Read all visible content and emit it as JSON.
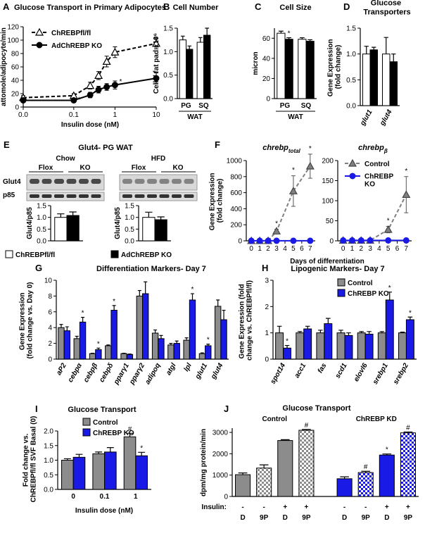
{
  "chart_data": [
    {
      "type": "line",
      "panel": "A",
      "title": "Glucose Transport in Primary Adipocytes",
      "ylabel": "attomole/adipocyte/min",
      "xlabel": "Insulin dose (nM)",
      "xscale": "log",
      "x": [
        0,
        0.1,
        0.25,
        0.4,
        0.63,
        1,
        10
      ],
      "xlim": [
        0,
        10
      ],
      "xticks": [
        {
          "value": 0,
          "label": "0.0"
        },
        0.1,
        1,
        10
      ],
      "ylim": [
        0,
        120
      ],
      "yticks": [
        0,
        20,
        40,
        60,
        80,
        100,
        120
      ],
      "legend": "top-left",
      "series": [
        {
          "name": "ChREBPfl/fl",
          "color": "#000000",
          "marker": "triangle",
          "dashed": true,
          "values": [
            14,
            17,
            32,
            47,
            68,
            82,
            95
          ],
          "errors": [
            3,
            3,
            5,
            6,
            8,
            8,
            8
          ]
        },
        {
          "name": "AdChREBP KO",
          "color": "#000000",
          "marker": "circle",
          "dashed": false,
          "values": [
            10,
            10,
            18,
            26,
            30,
            33,
            43
          ],
          "errors": [
            2,
            2,
            4,
            5,
            5,
            6,
            8
          ],
          "marks": [
            null,
            "*",
            "*",
            null,
            null,
            "*",
            null
          ]
        }
      ]
    },
    {
      "type": "bar",
      "panel": "B",
      "title": "Cell Number",
      "ylabel": "Cells/ fat pad x10⁶",
      "categories": [
        "PG",
        "SQ"
      ],
      "group_label": "WAT",
      "ylim": [
        0,
        1.5
      ],
      "yticks": [
        {
          "value": 0,
          "label": "0.0"
        },
        0.5,
        {
          "value": 1,
          "label": "1.0"
        },
        1.5
      ],
      "series": [
        {
          "color": "#ffffff",
          "values": [
            1.25,
            1.2
          ],
          "errors": [
            0.08,
            0.1
          ]
        },
        {
          "color": "#000000",
          "values": [
            1.05,
            1.35
          ],
          "errors": [
            0.07,
            0.15
          ]
        }
      ]
    },
    {
      "type": "bar",
      "panel": "C",
      "title": "Cell Size",
      "ylabel": "micron",
      "categories": [
        "PG",
        "SQ"
      ],
      "group_label": "WAT",
      "ylim": [
        0,
        70
      ],
      "yticks": [
        0,
        20,
        40,
        60
      ],
      "series": [
        {
          "color": "#ffffff",
          "values": [
            65,
            59
          ],
          "errors": [
            2,
            1.5
          ]
        },
        {
          "color": "#000000",
          "values": [
            59,
            57
          ],
          "errors": [
            1.5,
            1.5
          ],
          "marks": [
            "*",
            null
          ]
        }
      ]
    },
    {
      "type": "bar",
      "panel": "D",
      "title": "Glucose Transporters",
      "ylabel": "Gene Expression (fold change)",
      "categories": [
        "glut1",
        "glut4"
      ],
      "ylim": [
        0,
        1.5
      ],
      "yticks": [
        {
          "value": 0,
          "label": "0.0"
        },
        0.5,
        {
          "value": 1,
          "label": "1.0"
        },
        1.5
      ],
      "series": [
        {
          "color": "#ffffff",
          "values": [
            1.0,
            1.0
          ],
          "errors": [
            0.15,
            0.32
          ]
        },
        {
          "color": "#000000",
          "values": [
            1.08,
            0.85
          ],
          "errors": [
            0.05,
            0.15
          ]
        }
      ]
    },
    {
      "type": "bar",
      "panel": "E",
      "ylabel": "Glut4/p85",
      "legend": "bottom",
      "ylim": [
        0,
        1.5
      ],
      "yticks": [
        {
          "value": 0,
          "label": "0.0"
        },
        0.5,
        {
          "value": 1,
          "label": "1.0"
        },
        1.5
      ],
      "series": [
        {
          "name": "ChREBPfl/fl",
          "color": "#ffffff",
          "values": [
            1.0
          ],
          "errors": [
            0.15
          ]
        },
        {
          "name": "AdChREBP KO",
          "color": "#000000",
          "values": [
            1.08
          ],
          "errors": [
            0.15
          ]
        }
      ]
    },
    {
      "type": "bar",
      "ylabel": "Glut4/p85",
      "ylim": [
        0,
        1.5
      ],
      "yticks": [
        {
          "value": 0,
          "label": "0.0"
        },
        0.5,
        {
          "value": 1,
          "label": "1.0"
        },
        1.5
      ],
      "series": [
        {
          "color": "#ffffff",
          "values": [
            1.0
          ],
          "errors": [
            0.22
          ]
        },
        {
          "color": "#000000",
          "values": [
            0.9
          ],
          "errors": [
            0.12
          ]
        }
      ]
    },
    {
      "type": "line",
      "panel": "F",
      "title": "chrebp",
      "title_sub": "total",
      "ylabel": "Gene Expression (fold change)",
      "xlabel": "Days of differentiation",
      "x": [
        0,
        1,
        2,
        3,
        5,
        7
      ],
      "xlim": [
        -0.6,
        7.6
      ],
      "xticks": [
        0,
        1,
        2,
        3,
        4,
        5,
        6,
        7
      ],
      "ylim": [
        0,
        1000
      ],
      "yticks": [
        0,
        200,
        400,
        600,
        800,
        1000
      ],
      "series": [
        {
          "color": "#808080",
          "marker": "triangle",
          "dashed": true,
          "values": [
            1,
            1,
            1,
            120,
            620,
            930
          ],
          "errors": [
            0,
            0,
            0,
            25,
            190,
            150
          ],
          "marks": [
            null,
            null,
            null,
            "*",
            "*",
            "*"
          ]
        },
        {
          "color": "#1a1ae6",
          "marker": "circle",
          "dashed": false,
          "values": [
            1,
            1,
            1,
            1,
            1,
            1
          ]
        }
      ]
    },
    {
      "type": "line",
      "title": "chrebp",
      "title_sub": "β",
      "legend": "top-left",
      "x": [
        0,
        1,
        2,
        3,
        5,
        7
      ],
      "xlim": [
        -0.6,
        7.6
      ],
      "xticks": [
        0,
        1,
        2,
        3,
        4,
        5,
        6,
        7
      ],
      "ylim": [
        0,
        200
      ],
      "yticks": [
        0,
        50,
        100,
        150,
        200
      ],
      "series": [
        {
          "name": "Control",
          "color": "#808080",
          "marker": "triangle",
          "dashed": true,
          "values": [
            1,
            1,
            1,
            1,
            28,
            115
          ],
          "errors": [
            0,
            0,
            0,
            0,
            8,
            45
          ],
          "marks": [
            null,
            null,
            null,
            null,
            "*",
            "*"
          ]
        },
        {
          "name": "ChREBP KO",
          "color": "#1a1ae6",
          "marker": "circle",
          "dashed": false,
          "values": [
            1,
            1,
            1,
            1,
            1,
            1
          ]
        }
      ]
    },
    {
      "type": "bar",
      "panel": "G",
      "title": "Differentiation Markers- Day 7",
      "ylabel": "Gene Expression (fold change vs. Day 0)",
      "categories": [
        "aP2",
        "cebpα",
        "cebpβ",
        "cebpδ",
        "pparγ1",
        "pparγ2",
        "adipoq",
        "atgl",
        "lpl",
        "glut1",
        "glut4"
      ],
      "ylim": [
        0,
        10
      ],
      "yticks": [
        0,
        2,
        4,
        6,
        8,
        10
      ],
      "series": [
        {
          "color": "#8c8c8c",
          "values": [
            4.0,
            2.6,
            0.7,
            1.7,
            0.7,
            8.0,
            3.3,
            1.8,
            2.4,
            0.7,
            6.7
          ],
          "errors": [
            0.4,
            0.3,
            0.05,
            0.1,
            0.05,
            0.7,
            0.4,
            0.2,
            0.3,
            0.1,
            0.8
          ]
        },
        {
          "color": "#1a1ae6",
          "values": [
            3.6,
            4.7,
            1.2,
            6.2,
            0.6,
            8.3,
            2.6,
            2.0,
            7.5,
            1.7,
            5.0
          ],
          "errors": [
            0.5,
            0.6,
            0.2,
            0.6,
            0.05,
            1.5,
            0.4,
            0.3,
            0.8,
            0.2,
            1.2
          ],
          "marks": [
            null,
            "*",
            "*",
            "*",
            null,
            null,
            null,
            null,
            "*",
            "*",
            null
          ]
        }
      ]
    },
    {
      "type": "bar",
      "panel": "H",
      "title": "Lipogenic Markers- Day 7",
      "ylabel": "Gene Expression (fold change vs. ChREBPfl/fl)",
      "legend": "top-right",
      "categories": [
        "spot14",
        "acc1",
        "fas",
        "scd1",
        "elovl6",
        "srebp1",
        "srebp2"
      ],
      "ylim": [
        0,
        3
      ],
      "yticks": [
        0,
        1,
        2,
        3
      ],
      "series": [
        {
          "name": "Control",
          "color": "#8c8c8c",
          "values": [
            1.0,
            1.0,
            1.0,
            1.0,
            1.0,
            1.0,
            1.0
          ],
          "errors": [
            0.25,
            0.05,
            0.1,
            0.1,
            0.05,
            0.05,
            0.03
          ]
        },
        {
          "name": "ChREBP KO",
          "color": "#1a1ae6",
          "values": [
            0.42,
            1.15,
            1.35,
            0.9,
            0.95,
            2.25,
            1.5
          ],
          "errors": [
            0.1,
            0.1,
            0.2,
            0.1,
            0.1,
            0.3,
            0.1
          ],
          "marks": [
            "*",
            null,
            null,
            null,
            null,
            "*",
            "*"
          ]
        }
      ]
    },
    {
      "type": "bar",
      "panel": "I",
      "title": "Glucose Transport",
      "ylabel": "Fold change vs. ChREBPfl/fl SVF Basal (0)",
      "xlabel": "Insulin dose (nM)",
      "legend": "top-right",
      "categories": [
        "0",
        "0.1",
        "1"
      ],
      "ylim": [
        0,
        2
      ],
      "yticks": [
        {
          "value": 0,
          "label": "0.0"
        },
        0.5,
        {
          "value": 1,
          "label": "1.0"
        },
        1.5,
        {
          "value": 2,
          "label": "2.0"
        }
      ],
      "series": [
        {
          "name": "Control",
          "color": "#8c8c8c",
          "values": [
            1.0,
            1.22,
            1.8
          ],
          "errors": [
            0.05,
            0.06,
            0.12
          ],
          "marks": [
            null,
            null,
            "#"
          ]
        },
        {
          "name": "ChREBP KO",
          "color": "#1a1ae6",
          "values": [
            1.1,
            1.28,
            1.15
          ],
          "errors": [
            0.1,
            0.15,
            0.12
          ],
          "marks": [
            null,
            null,
            "*"
          ]
        }
      ]
    },
    {
      "type": "bar",
      "panel": "J",
      "title": "Glucose Transport",
      "ylabel": "dpm/mg protein/min",
      "group_labels": [
        "Control",
        "ChREBP KD"
      ],
      "row_label": "Insulin:",
      "insulin": [
        "-",
        "-",
        "+",
        "+",
        "-",
        "-",
        "+",
        "+"
      ],
      "categories": [
        "D",
        "9P",
        "D",
        "9P",
        "D",
        "9P",
        "D",
        "9P"
      ],
      "ylim": [
        0,
        3200
      ],
      "yticks": [
        0,
        1000,
        2000,
        3000
      ],
      "values": [
        1020,
        1330,
        2620,
        3100,
        830,
        1120,
        1940,
        2980
      ],
      "errors": [
        80,
        150,
        40,
        40,
        90,
        60,
        50,
        40
      ],
      "colors": [
        "#8c8c8c",
        "#8c8c8c",
        "#8c8c8c",
        "#8c8c8c",
        "#1a1ae6",
        "#1a1ae6",
        "#1a1ae6",
        "#1a1ae6"
      ],
      "hatched": [
        false,
        true,
        false,
        true,
        false,
        true,
        false,
        true
      ],
      "marks": [
        null,
        null,
        null,
        "#",
        null,
        "#",
        "*",
        "#"
      ]
    }
  ],
  "blot": {
    "title": "Glut4- PG WAT",
    "conditions": [
      "Chow",
      "HFD"
    ],
    "genotypes": [
      "Flox",
      "KO",
      "Flox",
      "KO"
    ],
    "proteins": [
      "Glut4",
      "p85"
    ]
  }
}
